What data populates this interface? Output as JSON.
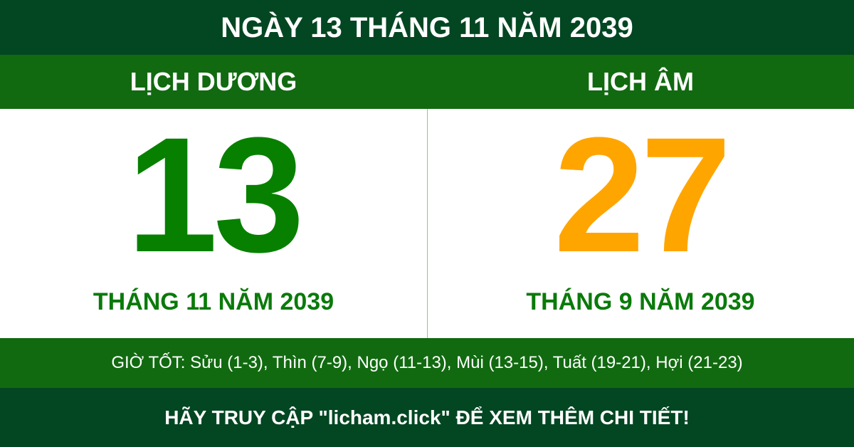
{
  "title": "NGÀY 13 THÁNG 11 NĂM 2039",
  "solar": {
    "header": "LỊCH DƯƠNG",
    "day": "13",
    "month_year": "THÁNG 11 NĂM 2039"
  },
  "lunar": {
    "header": "LỊCH ÂM",
    "day": "27",
    "month_year": "THÁNG 9 NĂM 2039"
  },
  "good_hours": "GIỜ TỐT: Sửu (1-3), Thìn (7-9), Ngọ (11-13), Mùi (13-15), Tuất (19-21), Hợi (21-23)",
  "footer": "HÃY TRUY CẬP \"licham.click\" ĐỂ XEM THÊM CHI TIẾT!",
  "colors": {
    "dark_green": "#034622",
    "green": "#116a10",
    "solar_day": "#078000",
    "lunar_day": "#ffa500"
  }
}
